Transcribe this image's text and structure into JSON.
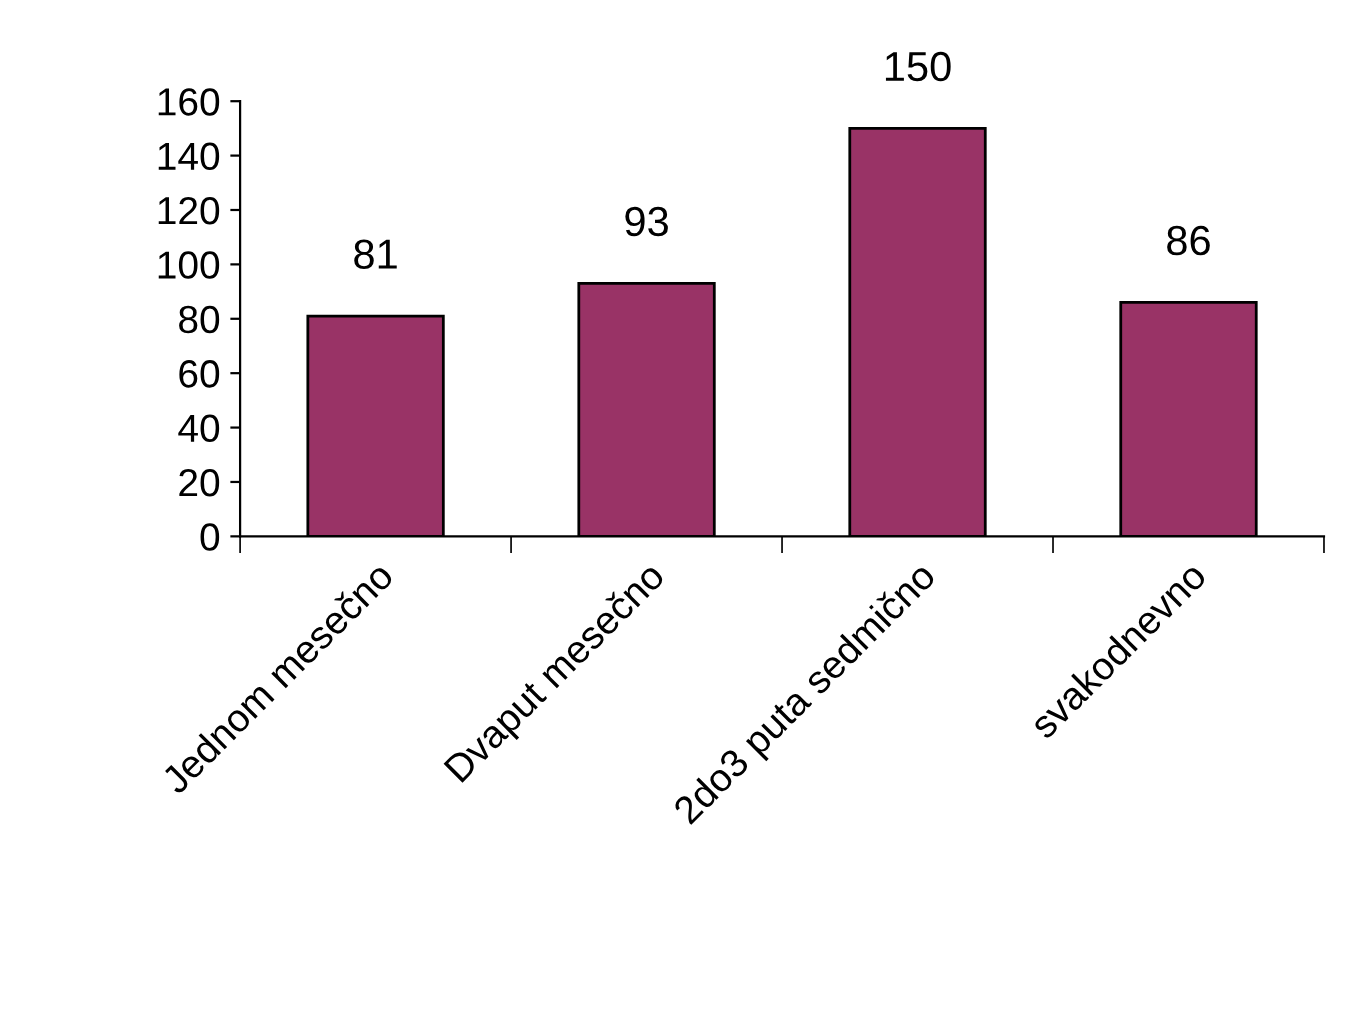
{
  "chart_data": {
    "type": "bar",
    "categories": [
      "Jednom mesečno",
      "Dvaput mesečno",
      "2do3 puta sedmično",
      "svakodnevno"
    ],
    "values": [
      81,
      93,
      150,
      86
    ],
    "color": "#993366",
    "ylim": [
      0,
      160
    ],
    "yticks": [
      0,
      20,
      40,
      60,
      80,
      100,
      120,
      140,
      160
    ],
    "data_labels": true,
    "grid": false,
    "legend": false
  }
}
